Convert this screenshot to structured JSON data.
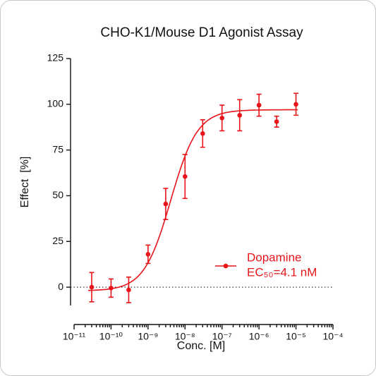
{
  "chart_data": {
    "type": "dose-response",
    "title": "CHO-K1/Mouse D1 Agonist Assay",
    "x_label": "Conc. [M]",
    "y_label": "Effect  [%]",
    "x_scale": "log",
    "xlim": [
      1e-11,
      0.0001
    ],
    "xticks": [
      {
        "value": 1e-11,
        "label": "10⁻¹¹"
      },
      {
        "value": 1e-10,
        "label": "10⁻¹⁰"
      },
      {
        "value": 1e-09,
        "label": "10⁻⁹"
      },
      {
        "value": 1e-08,
        "label": "10⁻⁸"
      },
      {
        "value": 1e-07,
        "label": "10⁻⁷"
      },
      {
        "value": 1e-06,
        "label": "10⁻⁶"
      },
      {
        "value": 1e-05,
        "label": "10⁻⁵"
      },
      {
        "value": 0.0001,
        "label": "10⁻⁴"
      }
    ],
    "ylim": [
      -10,
      125
    ],
    "yticks": [
      0,
      25,
      50,
      75,
      100,
      125
    ],
    "zero_line": true,
    "x": [
      3e-11,
      1e-10,
      3e-10,
      1e-09,
      3e-09,
      1e-08,
      3e-08,
      1e-07,
      3e-07,
      1e-06,
      3e-06,
      1e-05
    ],
    "series": [
      {
        "name": "Dopamine",
        "color": "#e8141a",
        "values": [
          0,
          -0.5,
          -1.5,
          18,
          45.5,
          60.5,
          84,
          92.5,
          94,
          99.5,
          90.5,
          100
        ],
        "errors": [
          8,
          5,
          7,
          5,
          8.5,
          12,
          7.5,
          7,
          8.5,
          6,
          3,
          6
        ]
      }
    ],
    "fit": {
      "bottom": -2,
      "top": 97,
      "ec50": 4.1e-09,
      "hill_slope": 1.2
    },
    "annotation": "EC₅₀=4.1 nM"
  }
}
